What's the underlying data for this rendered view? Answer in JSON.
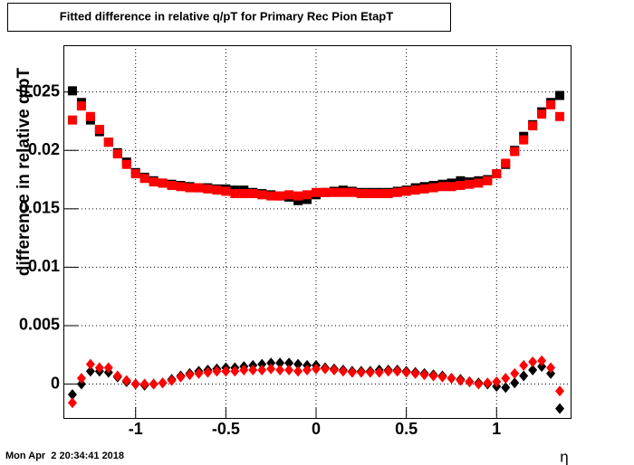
{
  "chart_data": {
    "type": "scatter",
    "title": "Fitted difference in relative q/pT for Primary Rec Pion EtapT",
    "x_label": "η",
    "y_label": "difference in relative q/pT",
    "footer": "Mon Apr  2 20:34:41 2018",
    "x": [
      -1.35,
      -1.3,
      -1.25,
      -1.2,
      -1.15,
      -1.1,
      -1.05,
      -1.0,
      -0.95,
      -0.9,
      -0.85,
      -0.8,
      -0.75,
      -0.7,
      -0.65,
      -0.6,
      -0.55,
      -0.5,
      -0.45,
      -0.4,
      -0.35,
      -0.3,
      -0.25,
      -0.2,
      -0.15,
      -0.1,
      -0.05,
      0,
      0.05,
      0.1,
      0.15,
      0.2,
      0.25,
      0.3,
      0.35,
      0.4,
      0.45,
      0.5,
      0.55,
      0.6,
      0.65,
      0.7,
      0.75,
      0.8,
      0.85,
      0.9,
      0.95,
      1.0,
      1.05,
      1.1,
      1.15,
      1.2,
      1.25,
      1.3,
      1.35
    ],
    "series": [
      {
        "color": "#000000",
        "marker": "square",
        "values": [
          0.0251,
          0.0241,
          0.0226,
          0.0216,
          0.0207,
          0.0198,
          0.019,
          0.0181,
          0.0177,
          0.0174,
          0.0172,
          0.0171,
          0.017,
          0.0169,
          0.0168,
          0.0168,
          0.0167,
          0.0167,
          0.0166,
          0.0166,
          0.0164,
          0.0163,
          0.0162,
          0.0161,
          0.016,
          0.0157,
          0.0158,
          0.0162,
          0.0164,
          0.0165,
          0.0166,
          0.0165,
          0.0164,
          0.0164,
          0.0164,
          0.0164,
          0.0165,
          0.0166,
          0.0168,
          0.0169,
          0.017,
          0.0171,
          0.0172,
          0.0174,
          0.0173,
          0.0174,
          0.0175,
          0.018,
          0.0188,
          0.02,
          0.0212,
          0.0222,
          0.0233,
          0.0241,
          0.0247
        ]
      },
      {
        "color": "#ff0000",
        "marker": "square",
        "values": [
          0.0226,
          0.0238,
          0.0229,
          0.0218,
          0.0207,
          0.0197,
          0.0188,
          0.018,
          0.0176,
          0.0173,
          0.0172,
          0.017,
          0.0169,
          0.0168,
          0.0168,
          0.0167,
          0.0166,
          0.0165,
          0.0163,
          0.0163,
          0.0163,
          0.0162,
          0.0161,
          0.0161,
          0.0162,
          0.0161,
          0.0162,
          0.0164,
          0.0164,
          0.0164,
          0.0164,
          0.0164,
          0.0163,
          0.0163,
          0.0163,
          0.0163,
          0.0164,
          0.0165,
          0.0166,
          0.0167,
          0.0168,
          0.0169,
          0.0169,
          0.017,
          0.0171,
          0.0172,
          0.0174,
          0.018,
          0.0189,
          0.0199,
          0.0209,
          0.0221,
          0.0231,
          0.0239,
          0.0229
        ]
      },
      {
        "color": "#000000",
        "marker": "diamond",
        "values": [
          -0.0009,
          0.0,
          0.0011,
          0.0011,
          0.001,
          0.0006,
          0.0002,
          0.0,
          -0.0001,
          0.0,
          0.0001,
          0.0004,
          0.0007,
          0.0009,
          0.0011,
          0.0012,
          0.0013,
          0.0014,
          0.0014,
          0.0015,
          0.0016,
          0.0017,
          0.0018,
          0.0018,
          0.0018,
          0.0017,
          0.0016,
          0.0016,
          0.0014,
          0.0013,
          0.0012,
          0.0011,
          0.0011,
          0.0011,
          0.0012,
          0.0012,
          0.0012,
          0.0011,
          0.001,
          0.0009,
          0.0008,
          0.0007,
          0.0005,
          0.0004,
          0.0002,
          0.0001,
          0.0,
          -0.0002,
          -0.0003,
          0.0001,
          0.0007,
          0.0012,
          0.0015,
          0.0009,
          -0.0021
        ]
      },
      {
        "color": "#ff0000",
        "marker": "diamond",
        "values": [
          -0.0016,
          0.0005,
          0.0017,
          0.0014,
          0.0014,
          0.0007,
          0.0003,
          0.0,
          0.0,
          0.0,
          0.0001,
          0.0003,
          0.0006,
          0.0008,
          0.0009,
          0.001,
          0.0011,
          0.0011,
          0.0011,
          0.0012,
          0.0012,
          0.0012,
          0.0013,
          0.0012,
          0.0012,
          0.0011,
          0.0012,
          0.0013,
          0.0013,
          0.0012,
          0.0011,
          0.001,
          0.001,
          0.001,
          0.001,
          0.0011,
          0.0011,
          0.001,
          0.0009,
          0.0008,
          0.0007,
          0.0006,
          0.0005,
          0.0003,
          0.0002,
          0.0,
          0.0001,
          0.0002,
          0.0005,
          0.0009,
          0.0016,
          0.0019,
          0.002,
          0.0014,
          -0.0006
        ]
      }
    ],
    "xlim": [
      -1.4,
      1.41
    ],
    "ylim": [
      -0.0029,
      0.029
    ],
    "xticks": [
      -1,
      -0.5,
      0,
      0.5,
      1
    ],
    "yticks": [
      0,
      0.005,
      0.01,
      0.015,
      0.02,
      0.025
    ],
    "grid": true
  }
}
